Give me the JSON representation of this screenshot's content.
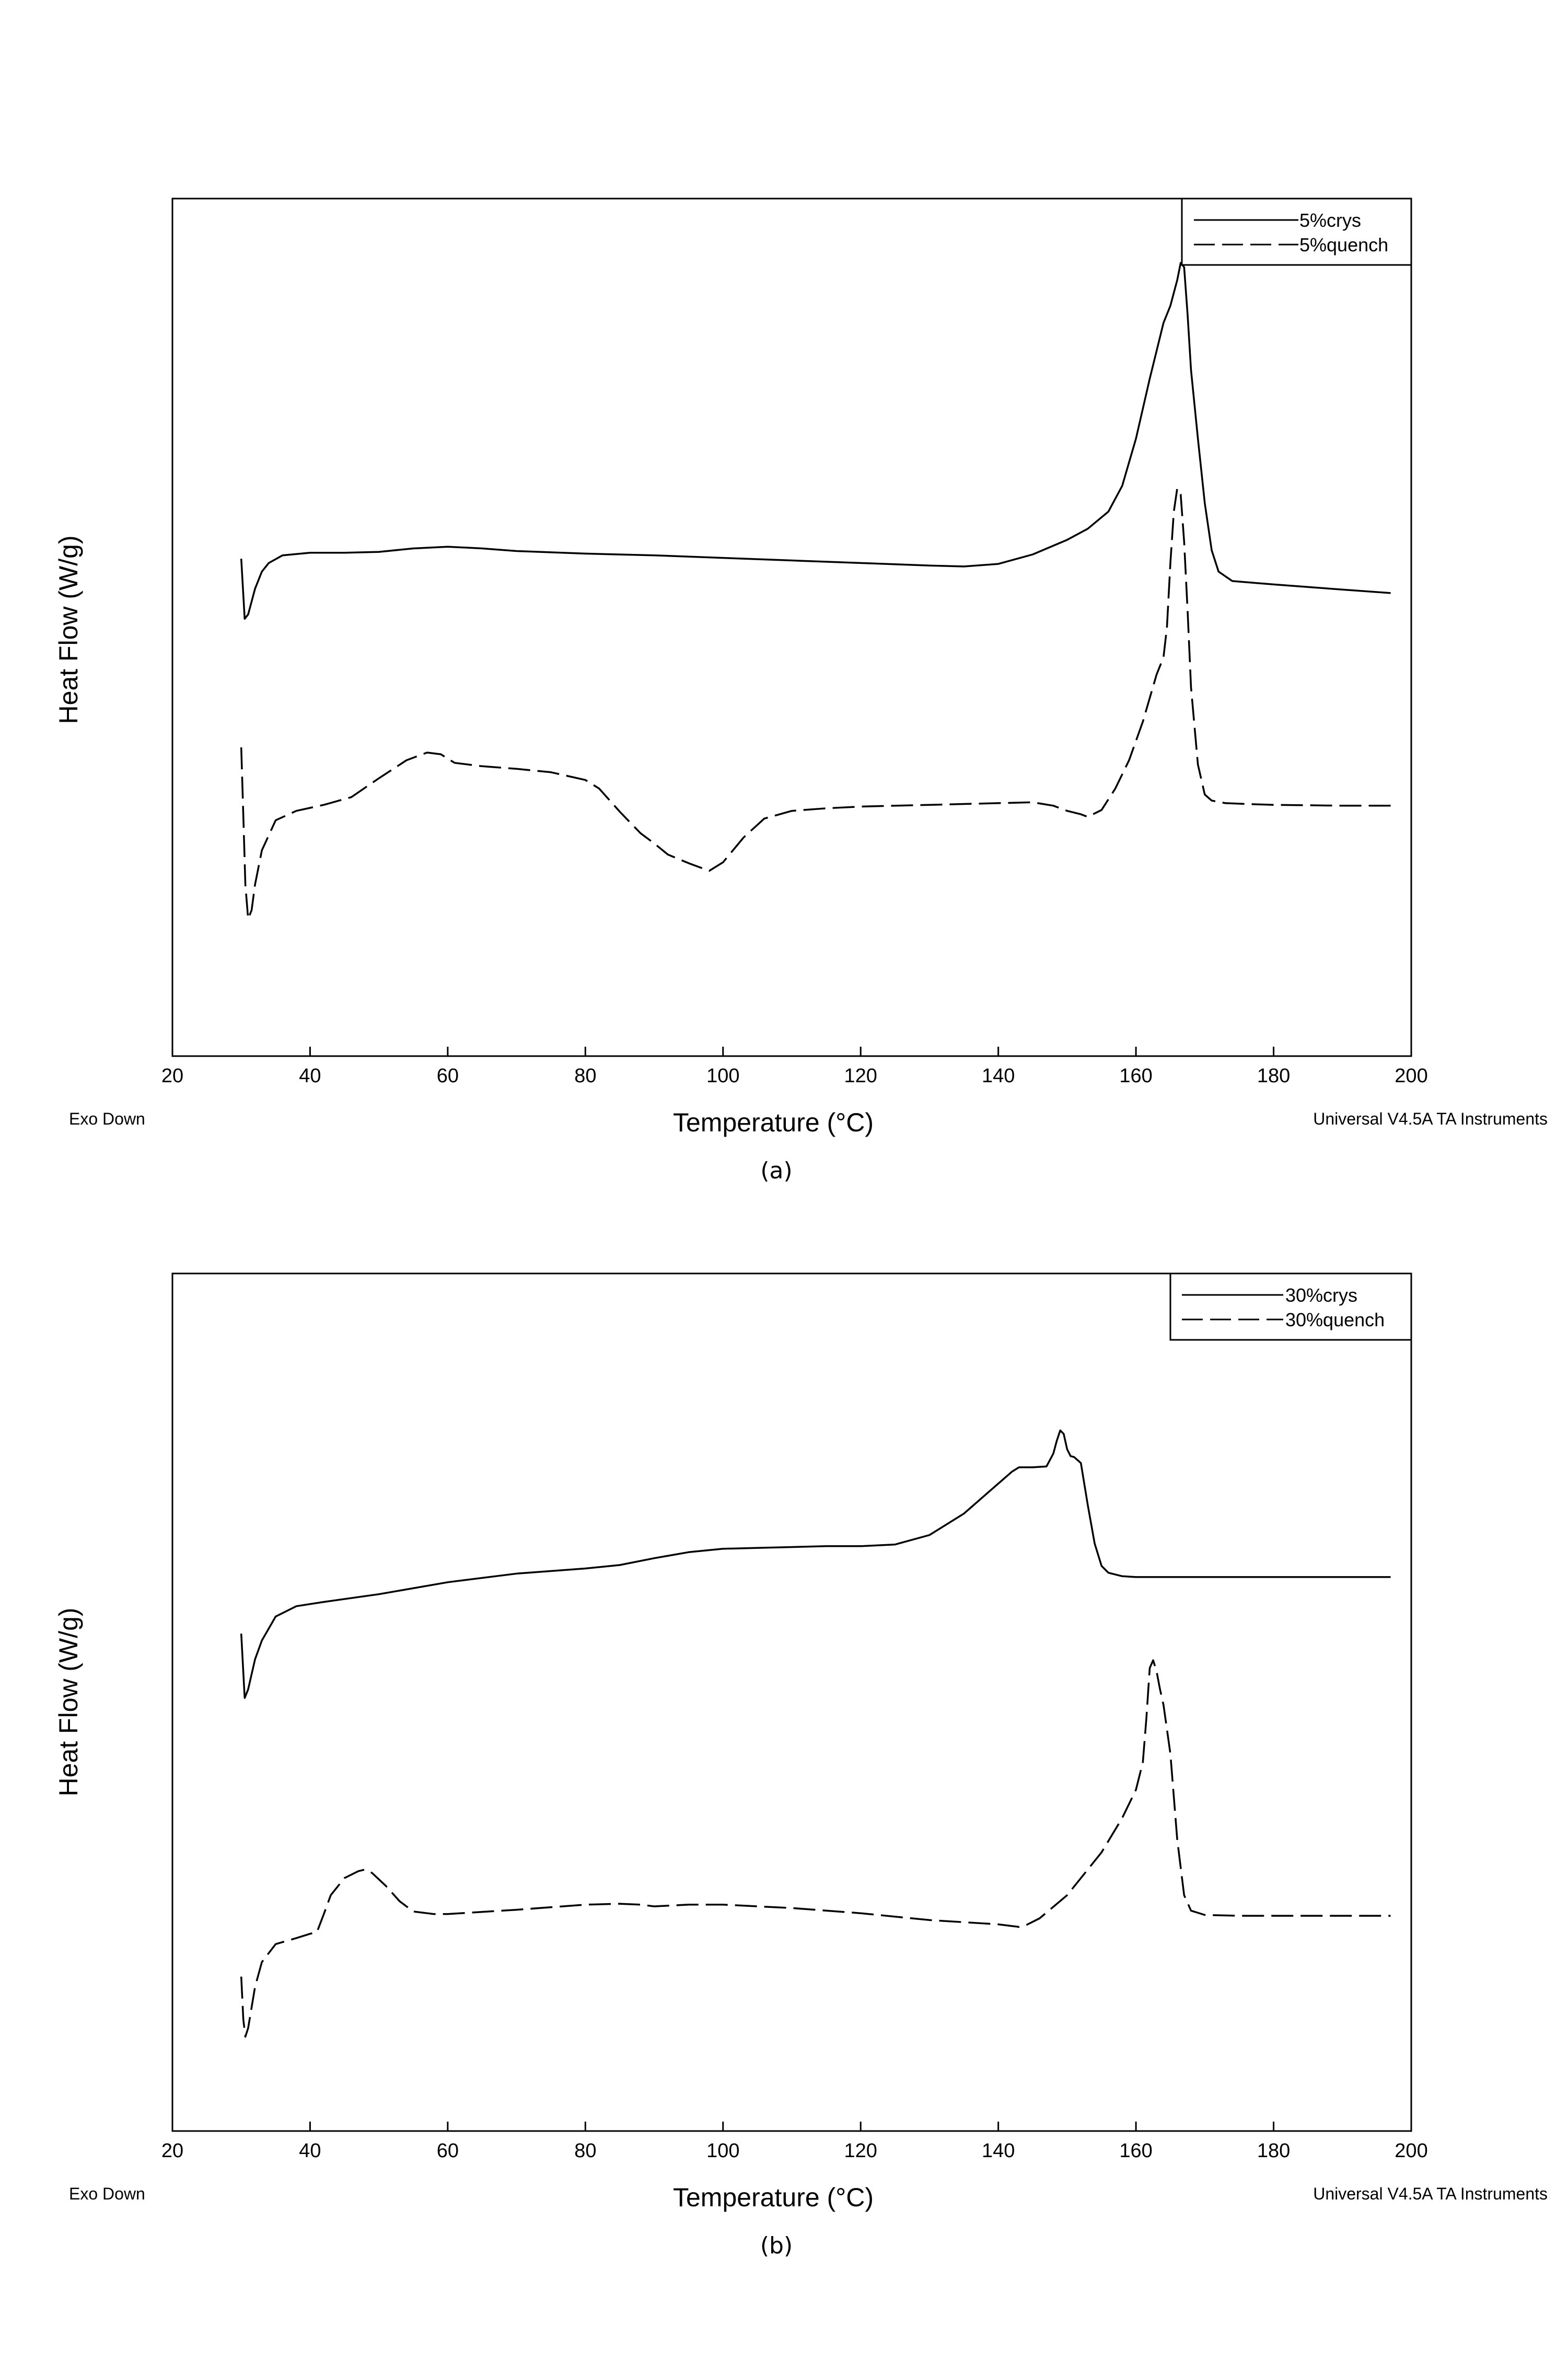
{
  "chart_data": [
    {
      "type": "line",
      "xlabel": "Temperature (°C)",
      "ylabel": "Heat Flow (W/g)",
      "xlim": [
        20,
        200
      ],
      "ylim": [
        0,
        100
      ],
      "xticks": [
        20,
        40,
        60,
        80,
        100,
        120,
        140,
        160,
        180,
        200
      ],
      "bottom_left_note": "Exo Down",
      "bottom_right_note": "Universal V4.5A TA Instruments",
      "caption": "(a)",
      "grid": false,
      "legend_position": "top-right",
      "series": [
        {
          "name": "5%crys",
          "style": "solid",
          "x": [
            30,
            30.5,
            31,
            32,
            33,
            34,
            36,
            40,
            45,
            50,
            55,
            60,
            65,
            70,
            80,
            90,
            100,
            110,
            120,
            130,
            135,
            140,
            145,
            150,
            153,
            156,
            158,
            160,
            162,
            164,
            165,
            166,
            166.5,
            167,
            167.5,
            168,
            169,
            170,
            171,
            172,
            174,
            180,
            190,
            197
          ],
          "y": [
            58,
            51,
            51.5,
            54.5,
            56.5,
            57.5,
            58.4,
            58.7,
            58.7,
            58.8,
            59.2,
            59.4,
            59.2,
            58.9,
            58.6,
            58.4,
            58.1,
            57.8,
            57.5,
            57.2,
            57.1,
            57.4,
            58.5,
            60.2,
            61.5,
            63.5,
            66.5,
            72,
            79,
            85.5,
            87.5,
            90.5,
            92.5,
            92,
            86.5,
            80,
            72,
            64.5,
            59,
            56.5,
            55.4,
            55.0,
            54.4,
            54.0
          ]
        },
        {
          "name": "5%quench",
          "style": "dashed",
          "x": [
            30,
            30.3,
            30.6,
            31,
            31.5,
            32,
            33,
            35,
            38,
            42,
            46,
            50,
            54,
            57,
            59,
            61,
            65,
            70,
            75,
            80,
            82,
            85,
            88,
            90,
            92,
            95,
            98,
            100,
            103,
            106,
            110,
            115,
            120,
            130,
            140,
            145,
            148,
            150,
            152,
            153,
            155,
            157,
            159,
            161,
            163,
            164,
            164.5,
            165,
            165.5,
            166,
            166.5,
            167,
            167.5,
            168,
            169,
            170,
            171,
            173,
            176,
            180,
            190,
            197
          ],
          "y": [
            36,
            28,
            20,
            16,
            17,
            20,
            24,
            27.5,
            28.6,
            29.3,
            30.2,
            32.4,
            34.5,
            35.4,
            35.2,
            34.2,
            33.8,
            33.5,
            33.1,
            32.2,
            31.2,
            28.5,
            26,
            24.8,
            23.5,
            22.5,
            21.6,
            22.6,
            25.5,
            27.7,
            28.6,
            28.9,
            29.1,
            29.3,
            29.5,
            29.6,
            29.2,
            28.6,
            28.2,
            27.9,
            28.7,
            31.2,
            34.5,
            39,
            44.5,
            46.5,
            50,
            57.5,
            63.5,
            66.2,
            65.5,
            60,
            52,
            43,
            34,
            30.5,
            29.8,
            29.5,
            29.4,
            29.3,
            29.2,
            29.2
          ]
        }
      ]
    },
    {
      "type": "line",
      "xlabel": "Temperature (°C)",
      "ylabel": "Heat Flow (W/g)",
      "xlim": [
        20,
        200
      ],
      "ylim": [
        0,
        100
      ],
      "xticks": [
        20,
        40,
        60,
        80,
        100,
        120,
        140,
        160,
        180,
        200
      ],
      "bottom_left_note": "Exo Down",
      "bottom_right_note": "Universal V4.5A TA Instruments",
      "caption": "(b)",
      "grid": false,
      "legend_position": "top-right",
      "series": [
        {
          "name": "30%crys",
          "style": "solid",
          "x": [
            30,
            30.5,
            31,
            32,
            33,
            35,
            38,
            42,
            50,
            60,
            70,
            80,
            85,
            90,
            95,
            100,
            105,
            110,
            115,
            120,
            125,
            130,
            135,
            140,
            142,
            143,
            145,
            147,
            148,
            148.5,
            149,
            149.5,
            150,
            150.5,
            151,
            152,
            153,
            154,
            155,
            156,
            158,
            160,
            165,
            170,
            180,
            190,
            197
          ],
          "y": [
            58,
            50.5,
            51.5,
            55,
            57.2,
            60,
            61.2,
            61.7,
            62.6,
            64,
            65,
            65.6,
            66,
            66.8,
            67.5,
            67.9,
            68,
            68.1,
            68.2,
            68.2,
            68.4,
            69.5,
            72,
            75.5,
            76.9,
            77.4,
            77.4,
            77.5,
            79,
            80.5,
            81.7,
            81.3,
            79.5,
            78.7,
            78.6,
            77.9,
            73,
            68.5,
            65.9,
            65.1,
            64.7,
            64.6,
            64.6,
            64.6,
            64.6,
            64.6,
            64.6
          ]
        },
        {
          "name": "30%quench",
          "style": "dashed",
          "x": [
            30,
            30.3,
            30.6,
            31,
            32,
            33,
            35,
            38,
            40,
            41,
            42,
            43,
            45,
            47,
            48,
            49,
            51,
            53,
            55,
            58,
            60,
            70,
            80,
            85,
            88,
            90,
            95,
            100,
            110,
            120,
            130,
            140,
            143,
            144,
            146,
            150,
            155,
            158,
            160,
            161,
            161.5,
            162,
            162.5,
            163,
            163.5,
            164,
            165,
            166,
            167,
            168,
            170,
            175,
            180,
            190,
            197
          ],
          "y": [
            18,
            13,
            11,
            12,
            16.8,
            19.7,
            21.8,
            22.5,
            23,
            23.2,
            25.3,
            27.5,
            29.5,
            30.3,
            30.5,
            30.1,
            28.6,
            26.8,
            25.6,
            25.3,
            25.3,
            25.8,
            26.4,
            26.5,
            26.4,
            26.2,
            26.4,
            26.4,
            26,
            25.4,
            24.6,
            24.1,
            23.8,
            24,
            24.8,
            27.5,
            32.5,
            36.5,
            39.8,
            43,
            48,
            54,
            54.9,
            53.6,
            51.5,
            49.7,
            44,
            34,
            27.5,
            25.7,
            25.2,
            25.1,
            25.1,
            25.1,
            25.1
          ]
        }
      ]
    }
  ]
}
